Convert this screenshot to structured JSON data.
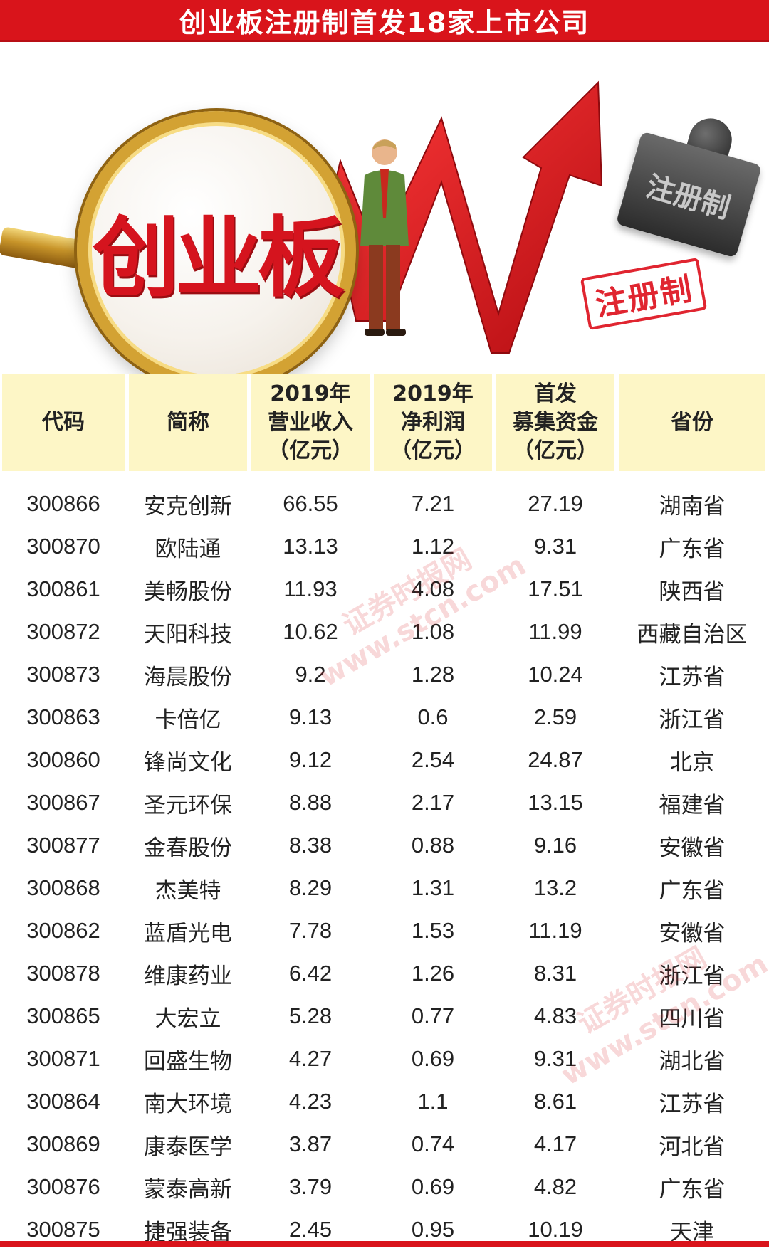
{
  "title": "创业板注册制首发18家上市公司",
  "hero": {
    "lens_text": "创业板",
    "stamp_text": "注册制",
    "stamp_mark_text": "注册制"
  },
  "table": {
    "headers": [
      {
        "line1": "代码",
        "line2": "",
        "line3": ""
      },
      {
        "line1": "简称",
        "line2": "",
        "line3": ""
      },
      {
        "line1": "2019年",
        "line2": "营业收入",
        "line3": "（亿元）"
      },
      {
        "line1": "2019年",
        "line2": "净利润",
        "line3": "（亿元）"
      },
      {
        "line1": "首发",
        "line2": "募集资金",
        "line3": "（亿元）"
      },
      {
        "line1": "省份",
        "line2": "",
        "line3": ""
      }
    ],
    "rows": [
      [
        "300866",
        "安克创新",
        "66.55",
        "7.21",
        "27.19",
        "湖南省"
      ],
      [
        "300870",
        "欧陆通",
        "13.13",
        "1.12",
        "9.31",
        "广东省"
      ],
      [
        "300861",
        "美畅股份",
        "11.93",
        "4.08",
        "17.51",
        "陕西省"
      ],
      [
        "300872",
        "天阳科技",
        "10.62",
        "1.08",
        "11.99",
        "西藏自治区"
      ],
      [
        "300873",
        "海晨股份",
        "9.2",
        "1.28",
        "10.24",
        "江苏省"
      ],
      [
        "300863",
        "卡倍亿",
        "9.13",
        "0.6",
        "2.59",
        "浙江省"
      ],
      [
        "300860",
        "锋尚文化",
        "9.12",
        "2.54",
        "24.87",
        "北京"
      ],
      [
        "300867",
        "圣元环保",
        "8.88",
        "2.17",
        "13.15",
        "福建省"
      ],
      [
        "300877",
        "金春股份",
        "8.38",
        "0.88",
        "9.16",
        "安徽省"
      ],
      [
        "300868",
        "杰美特",
        "8.29",
        "1.31",
        "13.2",
        "广东省"
      ],
      [
        "300862",
        "蓝盾光电",
        "7.78",
        "1.53",
        "11.19",
        "安徽省"
      ],
      [
        "300878",
        "维康药业",
        "6.42",
        "1.26",
        "8.31",
        "浙江省"
      ],
      [
        "300865",
        "大宏立",
        "5.28",
        "0.77",
        "4.83",
        "四川省"
      ],
      [
        "300871",
        "回盛生物",
        "4.27",
        "0.69",
        "9.31",
        "湖北省"
      ],
      [
        "300864",
        "南大环境",
        "4.23",
        "1.1",
        "8.61",
        "江苏省"
      ],
      [
        "300869",
        "康泰医学",
        "3.87",
        "0.74",
        "4.17",
        "河北省"
      ],
      [
        "300876",
        "蒙泰高新",
        "3.79",
        "0.69",
        "4.82",
        "广东省"
      ],
      [
        "300875",
        "捷强装备",
        "2.45",
        "0.95",
        "10.19",
        "天津"
      ]
    ]
  },
  "watermarks": [
    {
      "text": "证券时报网"
    },
    {
      "text": "www.stcn.com"
    },
    {
      "text": "证券时报网"
    },
    {
      "text": "www.stcn.com"
    }
  ],
  "colors": {
    "brand_red": "#d9141b",
    "header_bg": "#fdf6c6",
    "lens_gold": "#d3a233"
  }
}
